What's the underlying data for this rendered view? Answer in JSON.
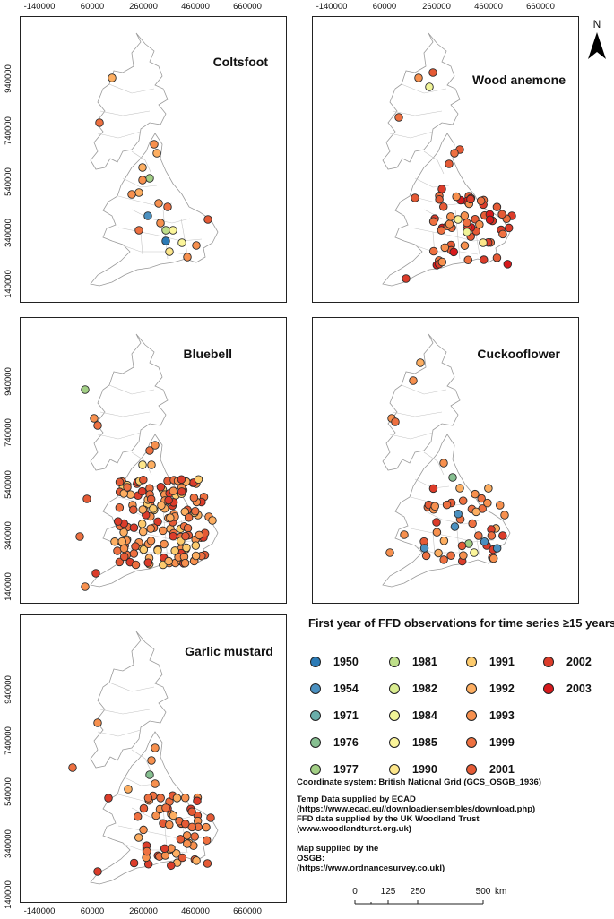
{
  "colors": {
    "1950": "#2c7bb6",
    "1954": "#4a90c0",
    "1971": "#6aaeaa",
    "1976": "#86bf90",
    "1977": "#a2cf85",
    "1981": "#bedf8a",
    "1982": "#d9ec8f",
    "1984": "#f0f497",
    "1985": "#fbf59a",
    "1990": "#fde68a",
    "1991": "#fdcb6d",
    "1992": "#fdae61",
    "1993": "#f7904e",
    "1999": "#ee7040",
    "2001": "#e55a35",
    "2002": "#dc3c2a",
    "2003": "#d7191c"
  },
  "axis": {
    "x_ticks": [
      "-140000",
      "60000",
      "260000",
      "460000",
      "660000"
    ],
    "y_ticks": [
      "940000",
      "740000",
      "540000",
      "340000",
      "140000"
    ]
  },
  "panels": [
    {
      "name": "Coltsfoot"
    },
    {
      "name": "Wood anemone"
    },
    {
      "name": "Bluebell"
    },
    {
      "name": "Cuckooflower"
    },
    {
      "name": "Garlic mustard"
    }
  ],
  "legend": {
    "title": "First year of FFD observations for time series ≥15 years",
    "years": [
      "1950",
      "1954",
      "1971",
      "1976",
      "1977",
      "1981",
      "1982",
      "1984",
      "1985",
      "1990",
      "1991",
      "1992",
      "1993",
      "1999",
      "2001",
      "2002",
      "2003"
    ]
  },
  "credits": {
    "coord": "Coordinate system: British National Grid (GCS_OSGB_1936)",
    "temp1": "Temp Data supplied by ECAD",
    "temp2": "(https://www.ecad.eu//download/ensembles/download.php)",
    "ffd1": "FFD data supplied by the UK Woodland Trust",
    "ffd2": "(www.woodlandturst.org.uk)",
    "map1": "Map supplied by the",
    "map2": "OSGB:",
    "map3": "(https://www.ordnancesurvey.co.ukl)"
  },
  "scale": {
    "labels": [
      "0",
      "125",
      "250",
      "500"
    ],
    "unit": "km"
  },
  "north": "N"
}
